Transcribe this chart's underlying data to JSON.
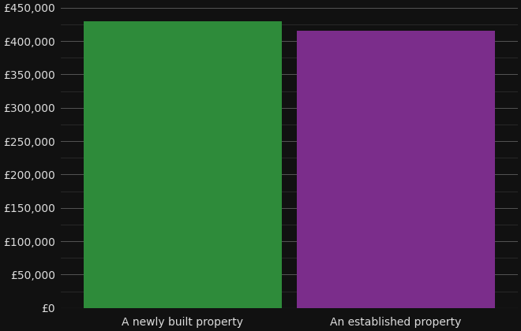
{
  "categories": [
    "A newly built property",
    "An established property"
  ],
  "values": [
    430000,
    415000
  ],
  "bar_colors": [
    "#2e8b3a",
    "#7b2d8b"
  ],
  "background_color": "#111111",
  "text_color": "#dddddd",
  "grid_color_major": "#555555",
  "grid_color_minor": "#333333",
  "ylim": [
    0,
    450000
  ],
  "yticks_major": [
    0,
    50000,
    100000,
    150000,
    200000,
    250000,
    300000,
    350000,
    400000,
    450000
  ],
  "yticks_minor": [
    25000,
    75000,
    125000,
    175000,
    225000,
    275000,
    325000,
    375000,
    425000
  ],
  "bar_width": 0.65,
  "x_positions": [
    0.35,
    1.05
  ],
  "xlim": [
    -0.05,
    1.45
  ]
}
